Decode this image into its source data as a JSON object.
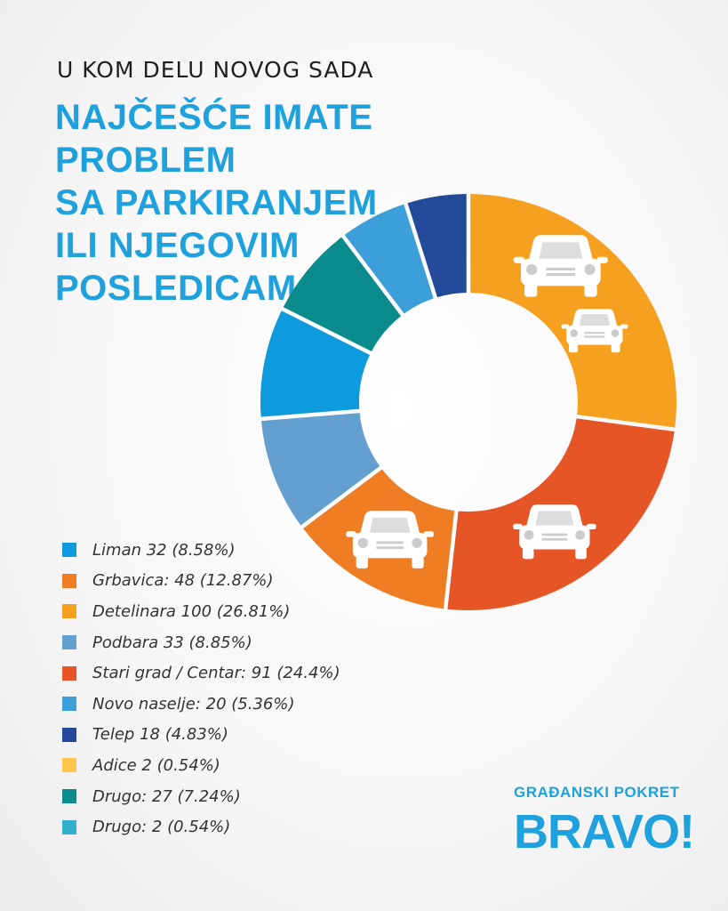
{
  "header": {
    "subtitle": "U KOM DELU NOVOG SADA",
    "title_lines": [
      "NAJČEŠĆE IMATE PROBLEM",
      "SA PARKIRANJEM",
      "ILI NJEGOVIM",
      "POSLEDICAMA?"
    ]
  },
  "brand": {
    "top": "GRAĐANSKI POKRET",
    "main": "BRAVO!"
  },
  "colors": {
    "accent": "#1ea1dd",
    "car_icon": "#ffffff"
  },
  "chart_data": {
    "type": "pie",
    "donut": true,
    "title": "U KOM DELU NOVOG SADA NAJČEŠĆE IMATE PROBLEM SA PARKIRANJEM ILI NJEGOVIM POSLEDICAMA?",
    "legend_position": "bottom-left",
    "slices": [
      {
        "name": "Liman",
        "value": 32,
        "percent": 8.58,
        "label": "Liman 32 (8.58%)",
        "color": "#0e9bdd"
      },
      {
        "name": "Grbavica",
        "value": 48,
        "percent": 12.87,
        "label": "Grbavica: 48 (12.87%)",
        "color": "#ee7d24"
      },
      {
        "name": "Detelinara",
        "value": 100,
        "percent": 26.81,
        "label": "Detelinara 100 (26.81%)",
        "color": "#f5a01f"
      },
      {
        "name": "Podbara",
        "value": 33,
        "percent": 8.85,
        "label": "Podbara 33 (8.85%)",
        "color": "#64a0cf"
      },
      {
        "name": "Stari grad / Centar",
        "value": 91,
        "percent": 24.4,
        "label": "Stari grad / Centar: 91 (24.4%)",
        "color": "#e65525"
      },
      {
        "name": "Novo naselje",
        "value": 20,
        "percent": 5.36,
        "label": "Novo naselje: 20 (5.36%)",
        "color": "#3d9fd9"
      },
      {
        "name": "Telep",
        "value": 18,
        "percent": 4.83,
        "label": "Telep 18 (4.83%)",
        "color": "#234a99"
      },
      {
        "name": "Adice",
        "value": 2,
        "percent": 0.54,
        "label": "Adice 2 (0.54%)",
        "color": "#fdc84a"
      },
      {
        "name": "Drugo",
        "value": 27,
        "percent": 7.24,
        "label": "Drugo: 27 (7.24%)",
        "color": "#0b8b8c"
      },
      {
        "name": "Drugo",
        "value": 2,
        "percent": 0.54,
        "label": "Drugo: 2 (0.54%)",
        "color": "#34b0cc"
      }
    ],
    "ring_order": [
      "Detelinara",
      "Stari grad / Centar",
      "Grbavica",
      "Podbara",
      "Liman",
      "Drugo",
      "Novo naselje",
      "Telep"
    ],
    "car_icons": [
      {
        "slice": "Detelinara",
        "icon": "car-icon"
      },
      {
        "slice": "Detelinara",
        "icon": "car-icon"
      },
      {
        "slice": "Stari grad / Centar",
        "icon": "car-icon"
      },
      {
        "slice": "Grbavica",
        "icon": "car-icon"
      }
    ]
  }
}
